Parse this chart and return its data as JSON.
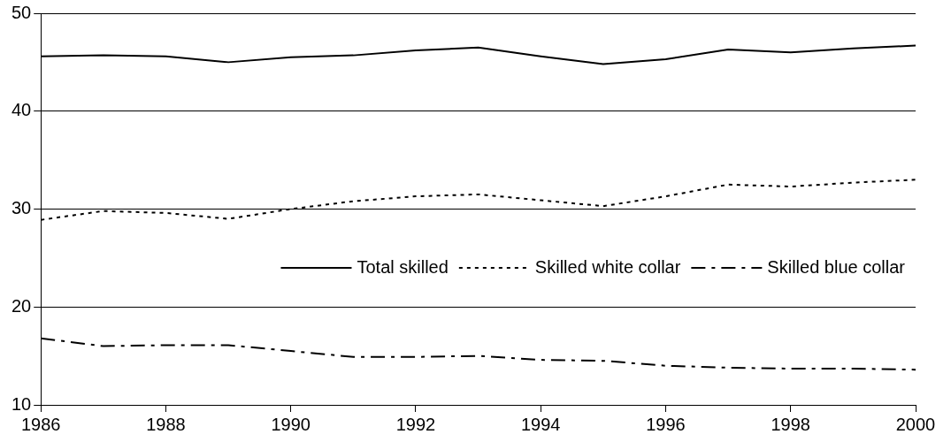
{
  "chart_data": {
    "type": "line",
    "x": [
      1986,
      1987,
      1988,
      1989,
      1990,
      1991,
      1992,
      1993,
      1994,
      1995,
      1996,
      1997,
      1998,
      1999,
      2000
    ],
    "series": [
      {
        "name": "Total skilled",
        "color": "#000000",
        "line_style": "solid",
        "values": [
          45.6,
          45.7,
          45.6,
          45.0,
          45.5,
          45.7,
          46.2,
          46.5,
          45.6,
          44.8,
          45.3,
          46.3,
          46.0,
          46.4,
          46.7
        ]
      },
      {
        "name": "Skilled white collar",
        "color": "#000000",
        "line_style": "dotted",
        "values": [
          28.9,
          29.8,
          29.6,
          29.0,
          30.0,
          30.8,
          31.3,
          31.5,
          30.9,
          30.3,
          31.3,
          32.5,
          32.3,
          32.7,
          33.0
        ]
      },
      {
        "name": "Skilled blue collar",
        "color": "#000000",
        "line_style": "dashdot",
        "values": [
          16.8,
          16.0,
          16.1,
          16.1,
          15.5,
          14.9,
          14.9,
          15.0,
          14.6,
          14.5,
          14.0,
          13.8,
          13.7,
          13.7,
          13.6
        ]
      }
    ],
    "xlim": [
      1986,
      2000
    ],
    "xticks": [
      1986,
      1988,
      1990,
      1992,
      1994,
      1996,
      1998,
      2000
    ],
    "ylim": [
      10,
      50
    ],
    "yticks": [
      10,
      20,
      30,
      40,
      50
    ],
    "grid": "y",
    "legend": "center right",
    "marker": "none"
  }
}
